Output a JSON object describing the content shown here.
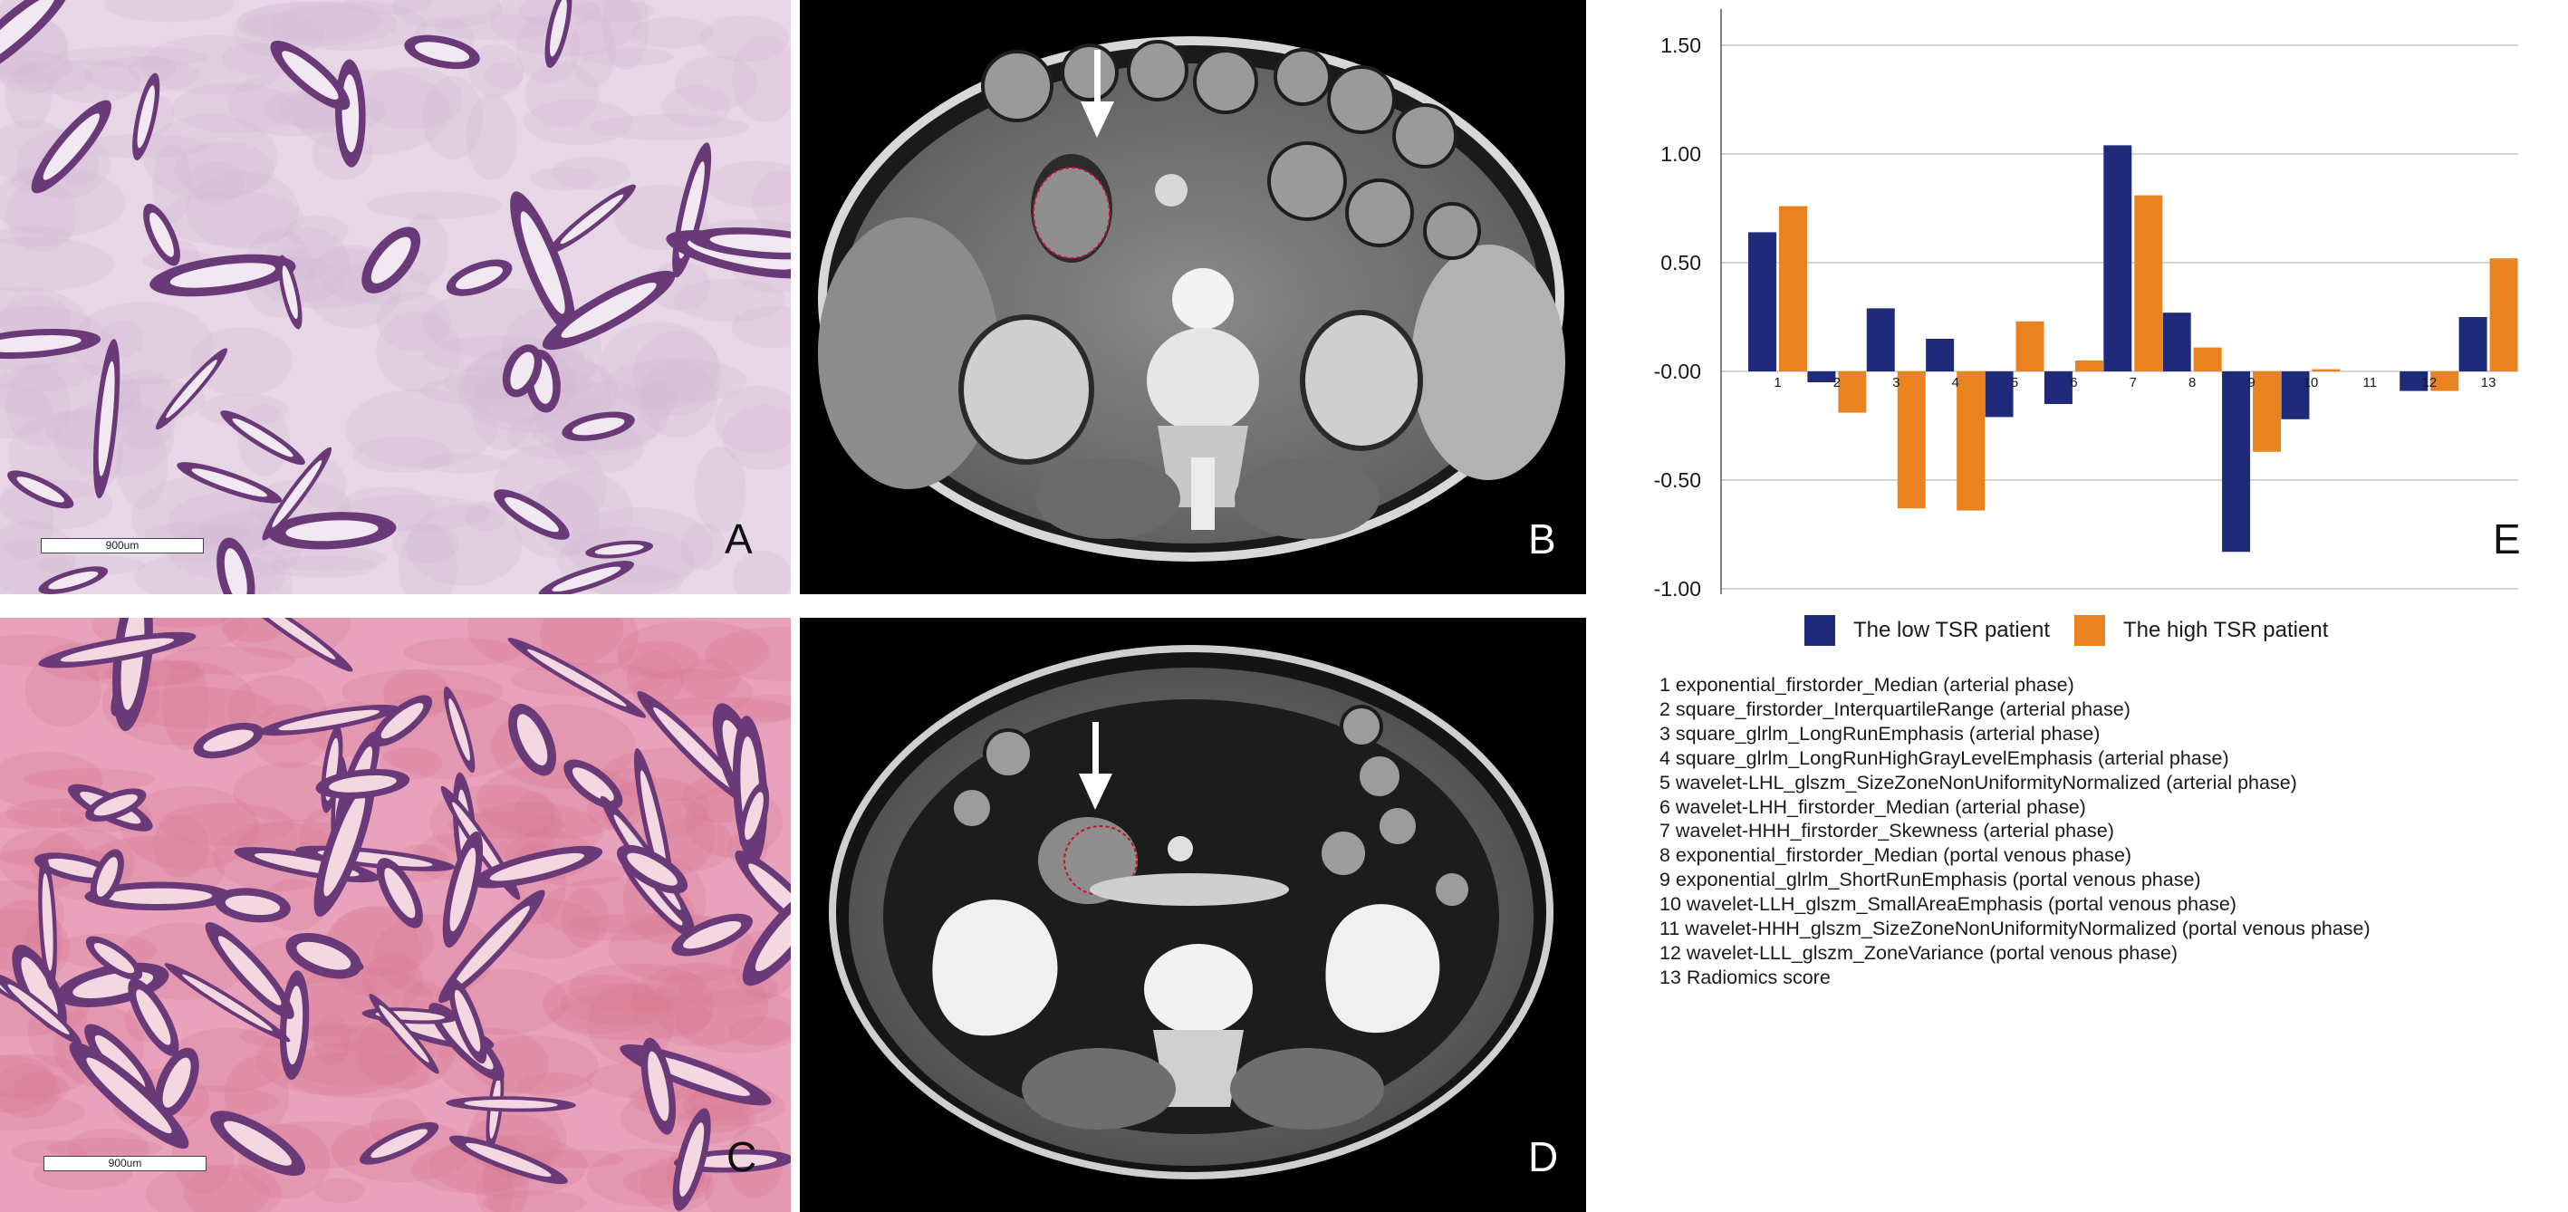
{
  "panels": {
    "a": {
      "letter": "A",
      "scalebar": "900um"
    },
    "b": {
      "letter": "B"
    },
    "c": {
      "letter": "C",
      "scalebar": "900um"
    },
    "d": {
      "letter": "D"
    },
    "e": {
      "letter": "E"
    }
  },
  "colors": {
    "low": "#1f2a7a",
    "high": "#e8831f",
    "he_light_bg": "#e6d6e6",
    "he_pink_bg": "#e9a2bb",
    "gland": "#6a3a78",
    "tumor_outline": "#c8102e"
  },
  "icons": {
    "arrow": "down-arrow-icon"
  },
  "chart_data": {
    "type": "bar",
    "categories": [
      "1",
      "2",
      "3",
      "4",
      "5",
      "6",
      "7",
      "8",
      "9",
      "10",
      "11",
      "12",
      "13"
    ],
    "series": [
      {
        "name": "The low TSR patient",
        "values": [
          0.64,
          -0.05,
          0.29,
          0.15,
          -0.21,
          -0.15,
          1.04,
          0.27,
          -0.83,
          -0.22,
          0.0,
          -0.09,
          0.25
        ]
      },
      {
        "name": "The high TSR patient",
        "values": [
          0.76,
          -0.19,
          -0.63,
          -0.64,
          0.23,
          0.05,
          0.81,
          0.11,
          -0.37,
          0.01,
          0.0,
          -0.09,
          0.52
        ]
      }
    ],
    "yticks": [
      "1.50",
      "1.00",
      "0.50",
      "-0.00",
      "-0.50",
      "-1.00"
    ],
    "ylim": [
      -1.0,
      1.6
    ],
    "grid": true,
    "legend_position": "bottom"
  },
  "feature_list": [
    "1 exponential_firstorder_Median (arterial phase)",
    "2 square_firstorder_InterquartileRange (arterial phase)",
    "3 square_glrlm_LongRunEmphasis (arterial phase)",
    "4 square_glrlm_LongRunHighGrayLevelEmphasis (arterial phase)",
    "5 wavelet-LHL_glszm_SizeZoneNonUniformityNormalized (arterial phase)",
    "6 wavelet-LHH_firstorder_Median (arterial phase)",
    "7 wavelet-HHH_firstorder_Skewness (arterial phase)",
    "8 exponential_firstorder_Median (portal venous phase)",
    "9 exponential_glrlm_ShortRunEmphasis (portal venous phase)",
    "10 wavelet-LLH_glszm_SmallAreaEmphasis (portal venous phase)",
    "11 wavelet-HHH_glszm_SizeZoneNonUniformityNormalized (portal venous phase)",
    "12 wavelet-LLL_glszm_ZoneVariance (portal venous phase)",
    "13 Radiomics score"
  ]
}
